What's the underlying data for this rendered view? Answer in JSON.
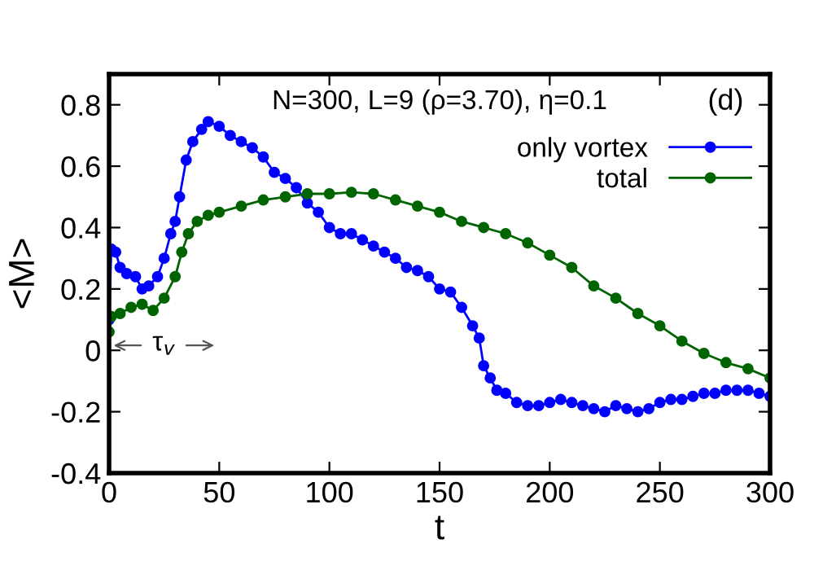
{
  "chart_data": {
    "type": "line",
    "title": "N=300, L=9 (ρ=3.70), η=0.1",
    "xlabel": "t",
    "ylabel": "<M>",
    "annotations": [
      "(d)",
      "τ$_{v}$"
    ],
    "series": [
      {
        "name": "only vortex",
        "color": "#0000ff",
        "x": [
          0,
          1,
          3,
          5,
          8,
          12,
          15,
          18,
          22,
          25,
          28,
          30,
          32,
          35,
          38,
          42,
          45,
          50,
          55,
          60,
          65,
          70,
          75,
          80,
          85,
          90,
          95,
          100,
          105,
          110,
          115,
          120,
          125,
          130,
          135,
          140,
          145,
          150,
          155,
          160,
          165,
          168,
          170,
          173,
          176,
          180,
          185,
          190,
          195,
          200,
          205,
          210,
          215,
          220,
          225,
          230,
          235,
          240,
          245,
          250,
          255,
          260,
          265,
          270,
          275,
          280,
          285,
          290,
          295,
          300
        ],
        "values": [
          0.1,
          0.33,
          0.32,
          0.27,
          0.25,
          0.24,
          0.2,
          0.21,
          0.24,
          0.3,
          0.38,
          0.42,
          0.5,
          0.62,
          0.68,
          0.72,
          0.745,
          0.73,
          0.7,
          0.68,
          0.66,
          0.63,
          0.58,
          0.56,
          0.53,
          0.48,
          0.45,
          0.4,
          0.38,
          0.38,
          0.36,
          0.34,
          0.32,
          0.3,
          0.27,
          0.26,
          0.24,
          0.2,
          0.19,
          0.14,
          0.08,
          0.04,
          -0.05,
          -0.09,
          -0.13,
          -0.14,
          -0.17,
          -0.18,
          -0.18,
          -0.17,
          -0.16,
          -0.17,
          -0.18,
          -0.19,
          -0.2,
          -0.18,
          -0.19,
          -0.2,
          -0.19,
          -0.17,
          -0.16,
          -0.16,
          -0.15,
          -0.14,
          -0.14,
          -0.13,
          -0.13,
          -0.13,
          -0.14,
          -0.15
        ]
      },
      {
        "name": "total",
        "color": "#006400",
        "x": [
          0,
          1,
          5,
          10,
          15,
          20,
          25,
          30,
          33,
          36,
          40,
          45,
          50,
          60,
          70,
          80,
          90,
          100,
          110,
          120,
          130,
          140,
          150,
          160,
          170,
          180,
          190,
          200,
          210,
          220,
          230,
          240,
          250,
          260,
          270,
          280,
          290,
          300
        ],
        "values": [
          0.06,
          0.11,
          0.12,
          0.14,
          0.15,
          0.13,
          0.17,
          0.24,
          0.32,
          0.38,
          0.42,
          0.44,
          0.45,
          0.47,
          0.49,
          0.5,
          0.51,
          0.51,
          0.515,
          0.51,
          0.49,
          0.47,
          0.45,
          0.42,
          0.4,
          0.38,
          0.35,
          0.31,
          0.27,
          0.21,
          0.17,
          0.12,
          0.08,
          0.03,
          -0.01,
          -0.04,
          -0.06,
          -0.09
        ]
      }
    ],
    "xlim": [
      0,
      300
    ],
    "xticks": [
      0,
      50,
      100,
      150,
      200,
      250,
      300
    ],
    "ylim": [
      -0.4,
      0.9
    ],
    "yticks": [
      -0.4,
      -0.2,
      0,
      0.2,
      0.4,
      0.6,
      0.8
    ],
    "grid": false,
    "legend": "top right",
    "marker": "circle",
    "line_style": "solid"
  }
}
